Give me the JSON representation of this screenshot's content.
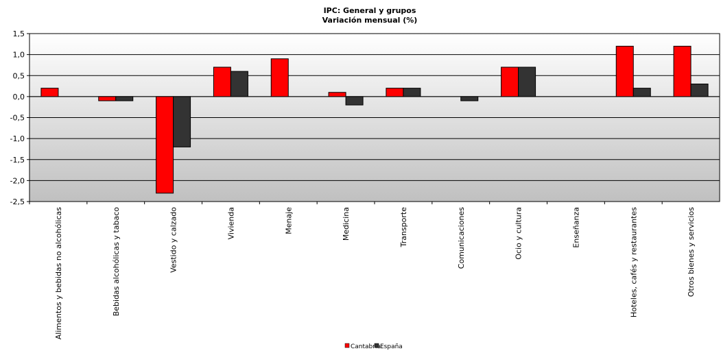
{
  "chart_data": {
    "type": "bar",
    "title": "IPC: General  y grupos",
    "subtitle": "Variación  mensual  (%)",
    "xlabel": "",
    "ylabel": "",
    "ylim": [
      -2.5,
      1.5
    ],
    "yticks": [
      "1,5",
      "1,0",
      "0,5",
      "0,0",
      "-0,5",
      "-1,0",
      "-1,5",
      "-2,0",
      "-2,5"
    ],
    "grid": true,
    "legend_position": "bottom",
    "categories": [
      "Alimentos y bebidas no alcohólicas",
      "Bebidas alcohólicas y tabaco",
      "Vestido y calzado",
      "Vivienda",
      "Menaje",
      "Medicina",
      "Transporte",
      "Comunicaciones",
      "Ocio y cultura",
      "Enseñanza",
      "Hoteles, cafés y restaurantes",
      "Otros bienes y servicios"
    ],
    "series": [
      {
        "name": "Cantabria",
        "color": "#ff0000",
        "values": [
          0.2,
          -0.1,
          -2.3,
          0.7,
          0.9,
          0.1,
          0.2,
          0.0,
          0.7,
          0.0,
          1.2,
          1.2
        ]
      },
      {
        "name": "España",
        "color": "#333333",
        "values": [
          0.0,
          -0.1,
          -1.2,
          0.6,
          0.0,
          -0.2,
          0.2,
          -0.1,
          0.7,
          0.0,
          0.2,
          0.3
        ]
      }
    ]
  }
}
